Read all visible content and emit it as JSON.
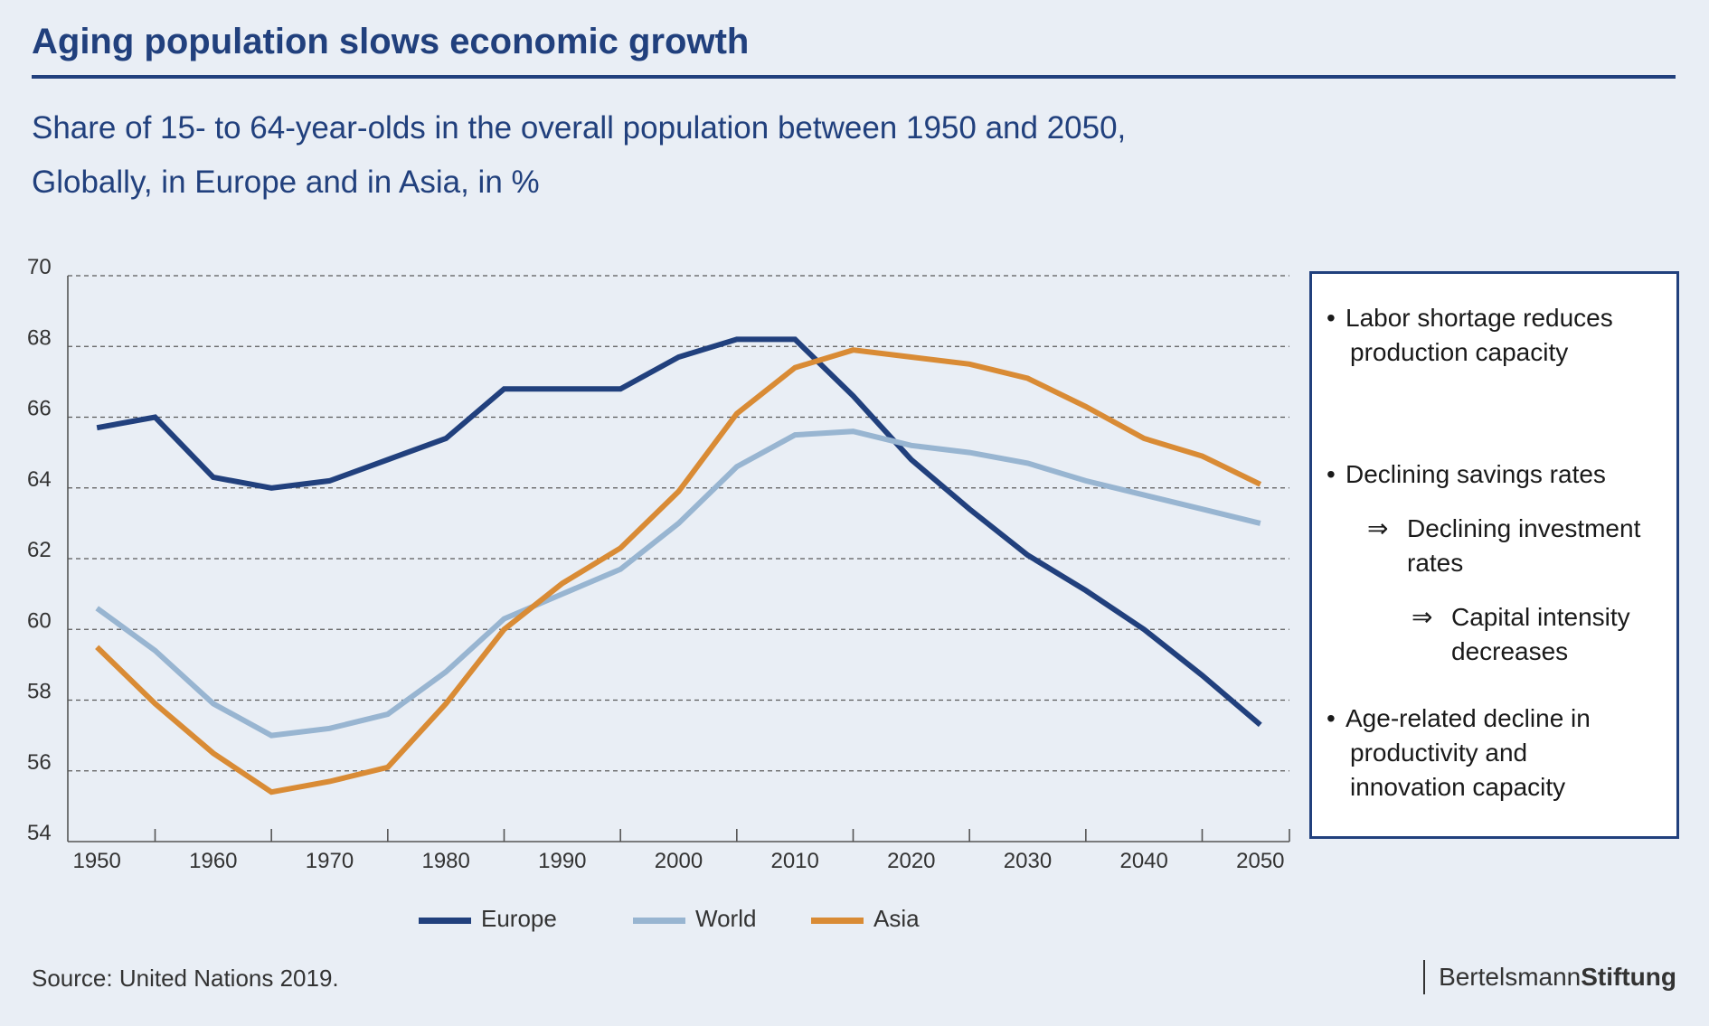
{
  "header": {
    "title": "Aging population slows economic growth",
    "subtitle_line1": "Share of 15- to 64-year-olds in the overall population between 1950 and 2050,",
    "subtitle_line2": "Globally, in Europe and in Asia, in %"
  },
  "chart_data": {
    "type": "line",
    "title": "Aging population slows economic growth",
    "subtitle": "Share of 15- to 64-year-olds in the overall population between 1950 and 2050, Globally, in Europe and in Asia, in %",
    "xlabel": "",
    "ylabel": "",
    "x": [
      1950,
      1955,
      1960,
      1965,
      1970,
      1975,
      1980,
      1985,
      1990,
      1995,
      2000,
      2005,
      2010,
      2015,
      2020,
      2025,
      2030,
      2035,
      2040,
      2045,
      2050
    ],
    "xlim": [
      1947.5,
      2052.5
    ],
    "ylim": [
      54,
      70
    ],
    "x_ticks": [
      1950,
      1960,
      1970,
      1980,
      1990,
      2000,
      2010,
      2020,
      2030,
      2040,
      2050
    ],
    "y_ticks": [
      54,
      56,
      58,
      60,
      62,
      64,
      66,
      68,
      70
    ],
    "grid": "horizontal dashed",
    "legend_position": "bottom",
    "series": [
      {
        "name": "Europe",
        "color": "#21407d",
        "values": [
          65.7,
          66.0,
          64.3,
          64.0,
          64.2,
          64.8,
          65.4,
          66.8,
          66.8,
          66.8,
          67.7,
          68.2,
          68.2,
          66.6,
          64.8,
          63.4,
          62.1,
          61.1,
          60.0,
          58.7,
          57.3
        ]
      },
      {
        "name": "World",
        "color": "#98b5d1",
        "values": [
          60.6,
          59.4,
          57.9,
          57.0,
          57.2,
          57.6,
          58.8,
          60.3,
          61.0,
          61.7,
          63.0,
          64.6,
          65.5,
          65.6,
          65.2,
          65.0,
          64.7,
          64.2,
          63.8,
          63.4,
          63.0
        ]
      },
      {
        "name": "Asia",
        "color": "#d98b35",
        "values": [
          59.5,
          57.9,
          56.5,
          55.4,
          55.7,
          56.1,
          57.9,
          60.0,
          61.3,
          62.3,
          63.9,
          66.1,
          67.4,
          67.9,
          67.7,
          67.5,
          67.1,
          66.3,
          65.4,
          64.9,
          64.1
        ]
      }
    ]
  },
  "notes": {
    "bullet_symbol": "•",
    "arrow_symbol": "⇒",
    "item1_line1": "Labor shortage reduces",
    "item1_line2": "production capacity",
    "item2_line1": "Declining savings rates",
    "item2_sub1_line1": "Declining investment",
    "item2_sub1_line2": "rates",
    "item2_sub2_line1": "Capital intensity",
    "item2_sub2_line2": "decreases",
    "item3_line1": "Age-related decline in",
    "item3_line2": "productivity and",
    "item3_line3": "innovation capacity"
  },
  "footer": {
    "source": "Source: United Nations 2019.",
    "brand_part1": "Bertelsmann",
    "brand_part2": "Stiftung"
  }
}
